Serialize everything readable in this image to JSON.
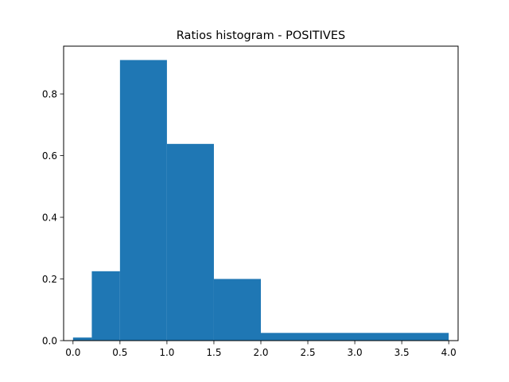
{
  "chart_data": {
    "type": "bar",
    "title": "Ratios histogram - POSITIVES",
    "xlabel": "",
    "ylabel": "",
    "xlim": [
      -0.1,
      4.1
    ],
    "ylim": [
      0,
      0.955
    ],
    "x_ticks": [
      0.0,
      0.5,
      1.0,
      1.5,
      2.0,
      2.5,
      3.0,
      3.5,
      4.0
    ],
    "x_tick_labels": [
      "0.0",
      "0.5",
      "1.0",
      "1.5",
      "2.0",
      "2.5",
      "3.0",
      "3.5",
      "4.0"
    ],
    "y_ticks": [
      0.0,
      0.2,
      0.4,
      0.6,
      0.8
    ],
    "y_tick_labels": [
      "0.0",
      "0.2",
      "0.4",
      "0.6",
      "0.8"
    ],
    "grid": false,
    "bar_color": "#1f77b4",
    "bins": [
      {
        "x0": 0.0,
        "x1": 0.2,
        "value": 0.01
      },
      {
        "x0": 0.2,
        "x1": 0.5,
        "value": 0.225
      },
      {
        "x0": 0.5,
        "x1": 1.0,
        "value": 0.91
      },
      {
        "x0": 1.0,
        "x1": 1.5,
        "value": 0.638
      },
      {
        "x0": 1.5,
        "x1": 2.0,
        "value": 0.2
      },
      {
        "x0": 2.0,
        "x1": 4.0,
        "value": 0.025
      }
    ]
  }
}
